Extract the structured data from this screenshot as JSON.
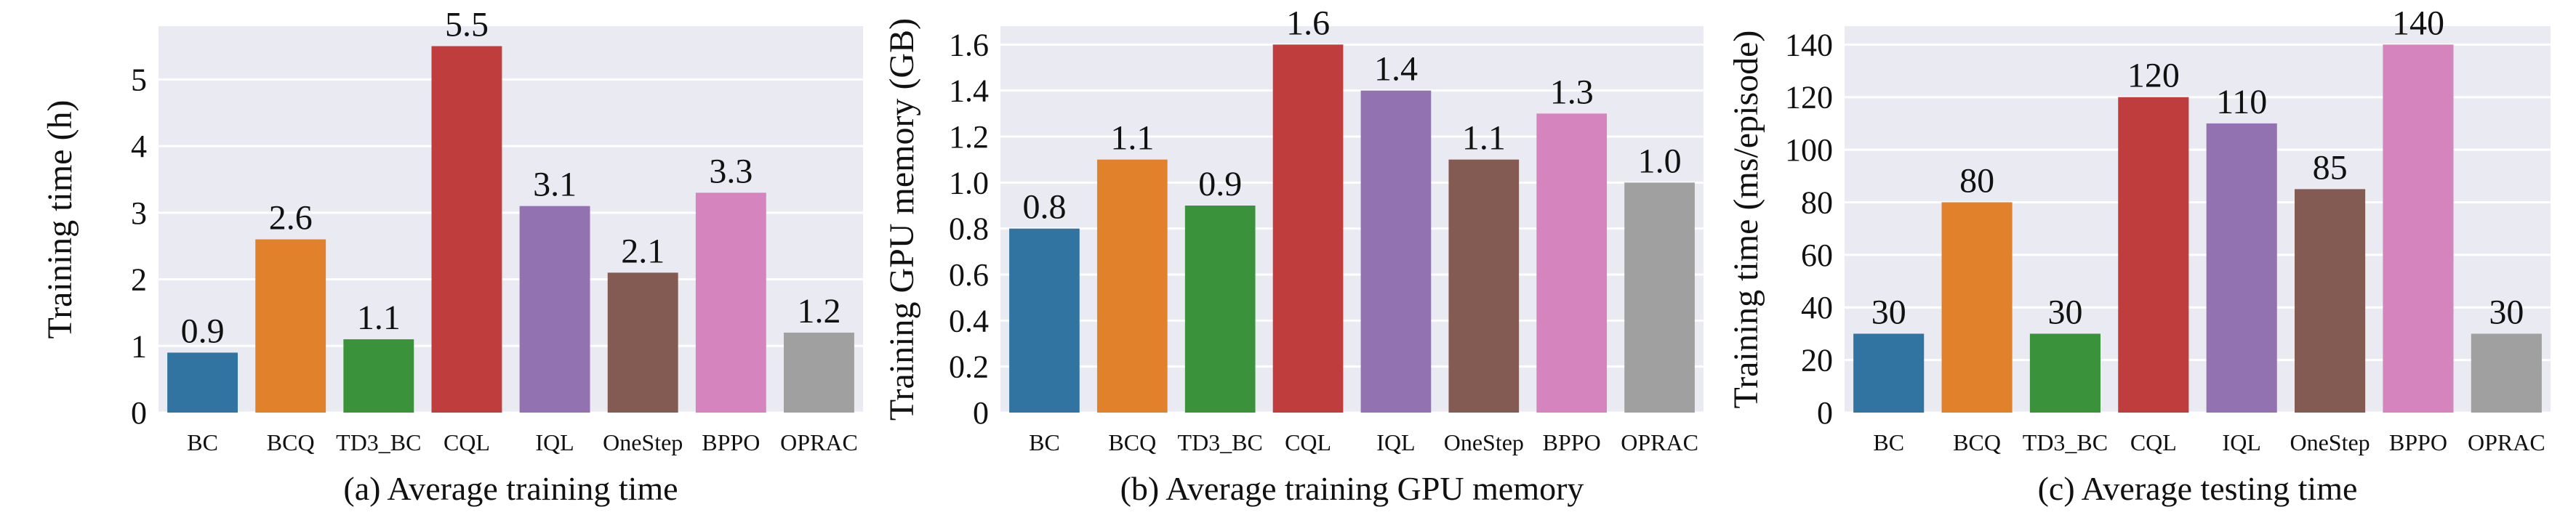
{
  "chart_data": [
    {
      "type": "bar",
      "caption": "(a) Average training time",
      "ylabel": "Training time (h)",
      "xlabel": "",
      "categories": [
        "BC",
        "BCQ",
        "TD3_BC",
        "CQL",
        "IQL",
        "OneStep",
        "BPPO",
        "OPRAC"
      ],
      "values": [
        0.9,
        2.6,
        1.1,
        5.5,
        3.1,
        2.1,
        3.3,
        1.2
      ],
      "value_labels": [
        "0.9",
        "2.6",
        "1.1",
        "5.5",
        "3.1",
        "2.1",
        "3.3",
        "1.2"
      ],
      "ylim": [
        0,
        5.8
      ],
      "yticks": [
        0,
        1,
        2,
        3,
        4,
        5
      ],
      "ytick_labels": [
        "0",
        "1",
        "2",
        "3",
        "4",
        "5"
      ],
      "grid": true
    },
    {
      "type": "bar",
      "caption": "(b) Average training GPU memory",
      "ylabel": "Training GPU memory (GB)",
      "xlabel": "",
      "categories": [
        "BC",
        "BCQ",
        "TD3_BC",
        "CQL",
        "IQL",
        "OneStep",
        "BPPO",
        "OPRAC"
      ],
      "values": [
        0.8,
        1.1,
        0.9,
        1.6,
        1.4,
        1.1,
        1.3,
        1.0
      ],
      "value_labels": [
        "0.8",
        "1.1",
        "0.9",
        "1.6",
        "1.4",
        "1.1",
        "1.3",
        "1.0"
      ],
      "ylim": [
        0,
        1.68
      ],
      "yticks": [
        0,
        0.2,
        0.4,
        0.6,
        0.8,
        1.0,
        1.2,
        1.4,
        1.6
      ],
      "ytick_labels": [
        "0",
        "0.2",
        "0.4",
        "0.6",
        "0.8",
        "1.0",
        "1.2",
        "1.4",
        "1.6"
      ],
      "grid": true
    },
    {
      "type": "bar",
      "caption": "(c) Average testing time",
      "ylabel": "Training time (ms/episode)",
      "xlabel": "",
      "categories": [
        "BC",
        "BCQ",
        "TD3_BC",
        "CQL",
        "IQL",
        "OneStep",
        "BPPO",
        "OPRAC"
      ],
      "values": [
        30,
        80,
        30,
        120,
        110,
        85,
        140,
        30
      ],
      "value_labels": [
        "30",
        "80",
        "30",
        "120",
        "110",
        "85",
        "140",
        "30"
      ],
      "ylim": [
        0,
        147
      ],
      "yticks": [
        0,
        20,
        40,
        60,
        80,
        100,
        120,
        140
      ],
      "ytick_labels": [
        "0",
        "20",
        "40",
        "60",
        "80",
        "100",
        "120",
        "140"
      ],
      "grid": true
    }
  ],
  "colors": {
    "plot_background": "#eaeaf2",
    "grid": "#ffffff",
    "bars": [
      "#3274a1",
      "#e1812c",
      "#3a923a",
      "#c03d3e",
      "#9372b2",
      "#845b53",
      "#d684bd",
      "#a0a0a0"
    ]
  }
}
